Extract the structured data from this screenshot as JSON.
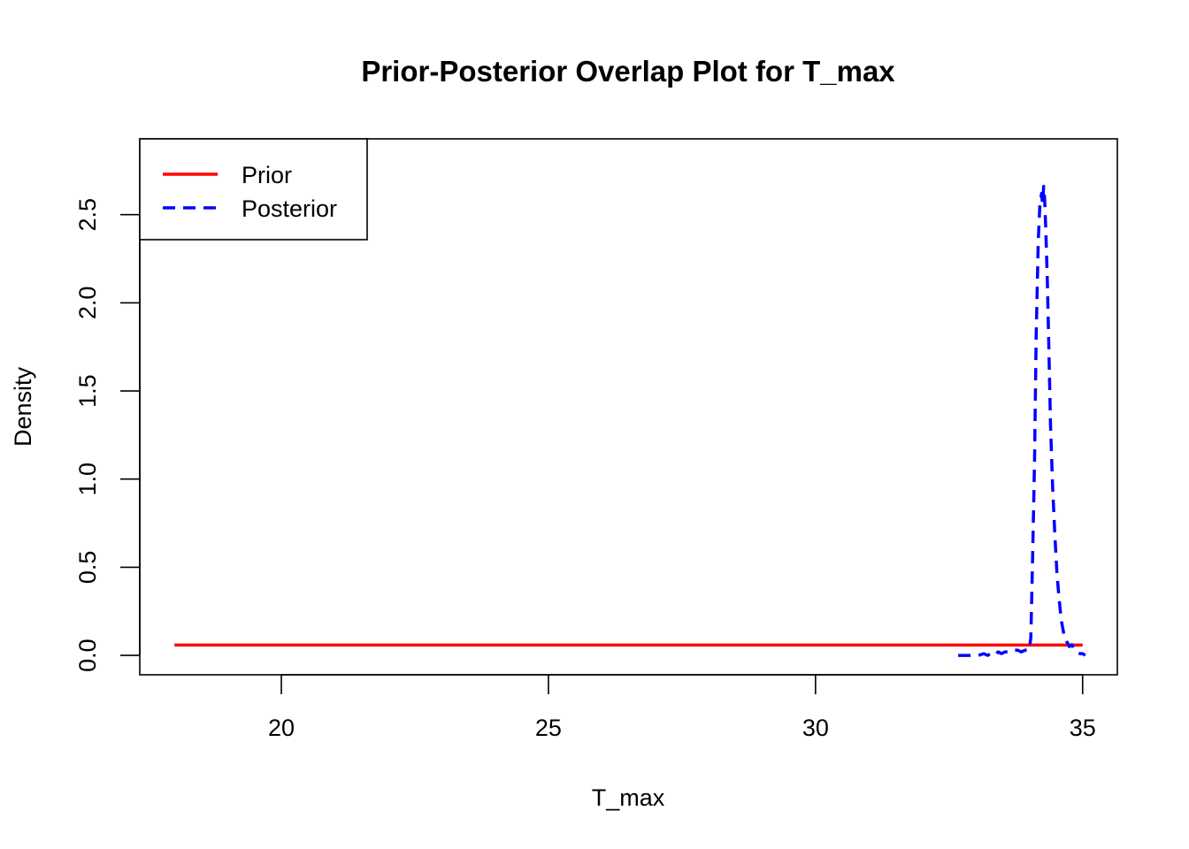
{
  "chart_data": {
    "type": "line",
    "title": "Prior-Posterior Overlap Plot for T_max",
    "xlabel": "T_max",
    "ylabel": "Density",
    "xlim": [
      17.35,
      35.65
    ],
    "ylim": [
      -0.11,
      2.93
    ],
    "x_ticks": [
      20,
      25,
      30,
      35
    ],
    "x_tick_labels": [
      "20",
      "25",
      "30",
      "35"
    ],
    "y_ticks": [
      0.0,
      0.5,
      1.0,
      1.5,
      2.0,
      2.5
    ],
    "y_tick_labels": [
      "0.0",
      "0.5",
      "1.0",
      "1.5",
      "2.0",
      "2.5"
    ],
    "grid": false,
    "legend_position": "top-left",
    "series": [
      {
        "name": "Prior",
        "color": "#ff0000",
        "dash": "solid",
        "x": [
          18,
          35
        ],
        "y": [
          0.0588,
          0.0588
        ]
      },
      {
        "name": "Posterior",
        "color": "#0000ff",
        "dash": "dashed",
        "x": [
          32.67,
          32.75,
          32.85,
          32.95,
          33.05,
          33.15,
          33.22,
          33.28,
          33.35,
          33.42,
          33.48,
          33.55,
          33.62,
          33.7,
          33.78,
          33.85,
          33.93,
          34.0,
          34.03,
          34.06,
          34.1,
          34.13,
          34.17,
          34.2,
          34.23,
          34.25,
          34.27,
          34.29,
          34.31,
          34.34,
          34.37,
          34.4,
          34.44,
          34.48,
          34.52,
          34.56,
          34.6,
          34.65,
          34.7,
          34.75,
          34.8,
          34.85,
          34.9,
          34.95,
          35.0,
          35.05
        ],
        "y": [
          0.0,
          0.0,
          0.0,
          0.0,
          0.0,
          0.01,
          0.0,
          0.01,
          0.0,
          0.02,
          0.01,
          0.02,
          0.02,
          0.03,
          0.03,
          0.02,
          0.03,
          0.03,
          0.1,
          0.5,
          1.1,
          1.8,
          2.35,
          2.55,
          2.62,
          2.56,
          2.66,
          2.58,
          2.42,
          2.12,
          1.72,
          1.3,
          0.95,
          0.68,
          0.46,
          0.32,
          0.2,
          0.12,
          0.08,
          0.05,
          0.06,
          0.03,
          0.02,
          0.01,
          0.01,
          0.0
        ]
      }
    ]
  }
}
